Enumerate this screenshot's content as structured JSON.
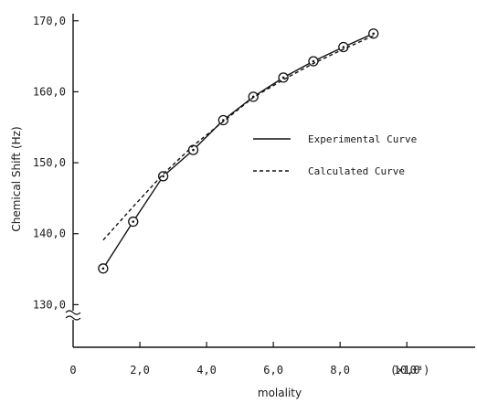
{
  "chart_data": {
    "type": "line",
    "xlabel": "molality",
    "ylabel": "Chemical Shift (Hz)",
    "x_ticks": [
      "0",
      "2,0",
      "4,0",
      "6,0",
      "8,0",
      "10,0"
    ],
    "x_unit_label": "(×10³)",
    "y_ticks": [
      "130,0",
      "140,0",
      "150,0",
      "160,0",
      "170,0"
    ],
    "xlim": [
      0,
      11.5
    ],
    "ylim": [
      124,
      171
    ],
    "axis_break": true,
    "grid": false,
    "legend_position": "center-right",
    "series": [
      {
        "name": "Experimental Curve",
        "style": "solid",
        "markers": true,
        "x": [
          0.9,
          1.8,
          2.7,
          3.6,
          4.5,
          5.4,
          6.3,
          7.2,
          8.1,
          9.0
        ],
        "y": [
          135.1,
          141.7,
          148.1,
          151.8,
          156.0,
          159.3,
          162.0,
          164.3,
          166.3,
          168.2
        ]
      },
      {
        "name": "Calculated Curve",
        "style": "dashed",
        "markers": false,
        "x": [
          0.9,
          1.8,
          2.7,
          3.6,
          4.5,
          5.4,
          6.3,
          7.2,
          8.1,
          9.0
        ],
        "y": [
          139.1,
          143.8,
          148.4,
          152.4,
          155.8,
          159.2,
          161.7,
          164.0,
          166.0,
          167.9
        ]
      }
    ]
  }
}
